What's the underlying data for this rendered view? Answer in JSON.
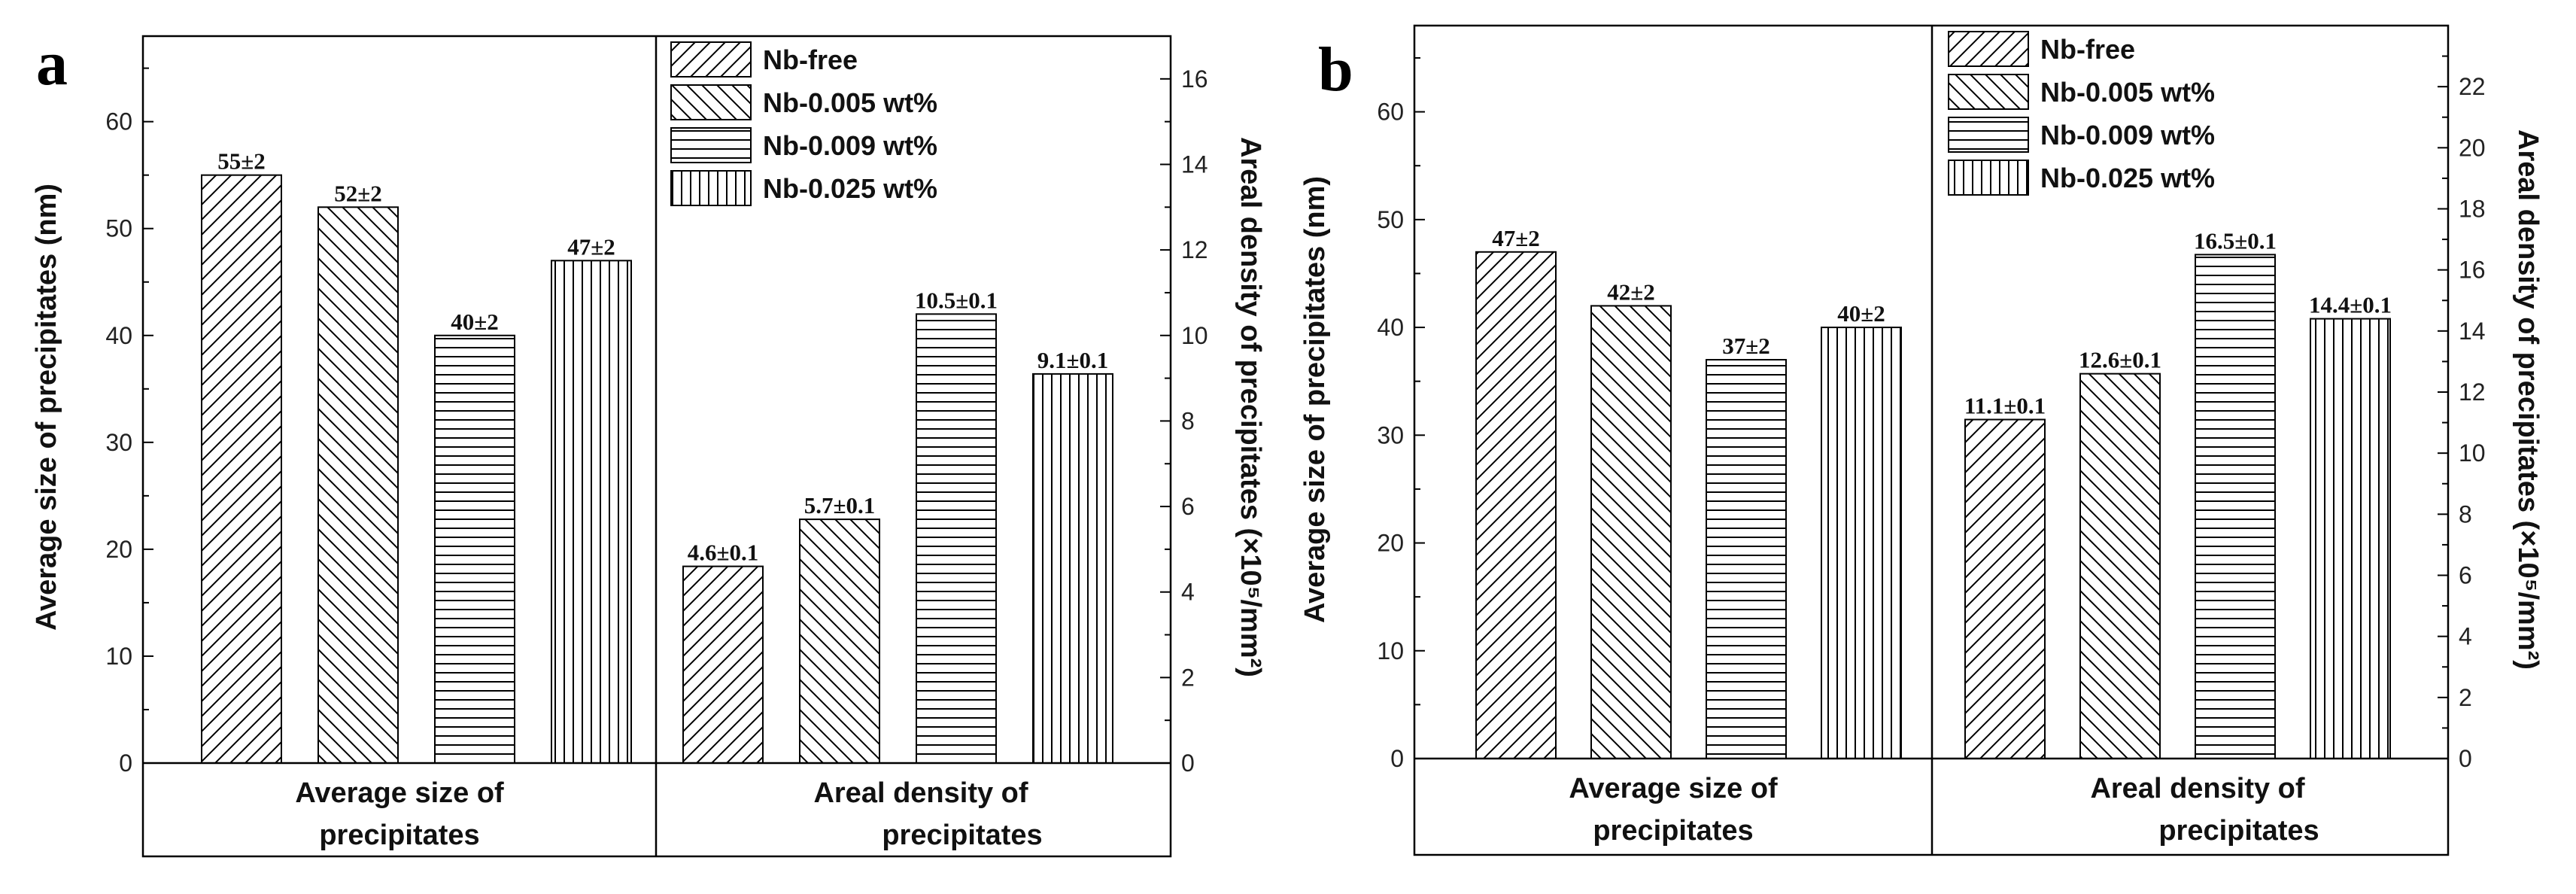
{
  "chart_data": [
    {
      "panel_label": "a",
      "type": "bar",
      "categories": [
        "Average size of precipitates",
        "Areal density of precipitates"
      ],
      "category_label_lines": [
        [
          "Average size of",
          "precipitates"
        ],
        [
          "Areal density of",
          "precipitates"
        ]
      ],
      "series": [
        {
          "name": "Nb-free",
          "pattern": "diag-up",
          "values": [
            55,
            4.6
          ],
          "labels": [
            "55±2",
            "4.6±0.1"
          ]
        },
        {
          "name": "Nb-0.005 wt%",
          "pattern": "diag-down",
          "values": [
            52,
            5.7
          ],
          "labels": [
            "52±2",
            "5.7±0.1"
          ]
        },
        {
          "name": "Nb-0.009 wt%",
          "pattern": "horizontal",
          "values": [
            40,
            10.5
          ],
          "labels": [
            "40±2",
            "10.5±0.1"
          ]
        },
        {
          "name": "Nb-0.025 wt%",
          "pattern": "vertical",
          "values": [
            47,
            9.1
          ],
          "labels": [
            "47±2",
            "9.1±0.1"
          ]
        }
      ],
      "ylabel_left": "Average size of precipitates (nm)",
      "ylabel_right": "Areal density of precipitates (×10⁵/mm²)",
      "ylim_left": [
        0,
        68
      ],
      "ylim_right": [
        0,
        17
      ],
      "yticks_left": [
        0,
        10,
        20,
        30,
        40,
        50,
        60
      ],
      "yticks_right": [
        0,
        2,
        4,
        6,
        8,
        10,
        12,
        14,
        16
      ],
      "legend": "top-right"
    },
    {
      "panel_label": "b",
      "type": "bar",
      "categories": [
        "Average size of precipitates",
        "Areal density of precipitates"
      ],
      "category_label_lines": [
        [
          "Average size of",
          "precipitates"
        ],
        [
          "Areal density of",
          "precipitates"
        ]
      ],
      "series": [
        {
          "name": "Nb-free",
          "pattern": "diag-up",
          "values": [
            47,
            11.1
          ],
          "labels": [
            "47±2",
            "11.1±0.1"
          ]
        },
        {
          "name": "Nb-0.005 wt%",
          "pattern": "diag-down",
          "values": [
            42,
            12.6
          ],
          "labels": [
            "42±2",
            "12.6±0.1"
          ]
        },
        {
          "name": "Nb-0.009 wt%",
          "pattern": "horizontal",
          "values": [
            37,
            16.5
          ],
          "labels": [
            "37±2",
            "16.5±0.1"
          ]
        },
        {
          "name": "Nb-0.025 wt%",
          "pattern": "vertical",
          "values": [
            40,
            14.4
          ],
          "labels": [
            "40±2",
            "14.4±0.1"
          ]
        }
      ],
      "ylabel_left": "Average size of precipitates (nm)",
      "ylabel_right": "Areal density of precipitates (×10⁵/mm²)",
      "ylim_left": [
        0,
        68
      ],
      "ylim_right": [
        0,
        24
      ],
      "yticks_left": [
        0,
        10,
        20,
        30,
        40,
        50,
        60
      ],
      "yticks_right": [
        0,
        2,
        4,
        6,
        8,
        10,
        12,
        14,
        16,
        18,
        20,
        22
      ],
      "legend": "top-right"
    }
  ],
  "colors": {
    "ink": "#000000",
    "background": "#ffffff"
  }
}
